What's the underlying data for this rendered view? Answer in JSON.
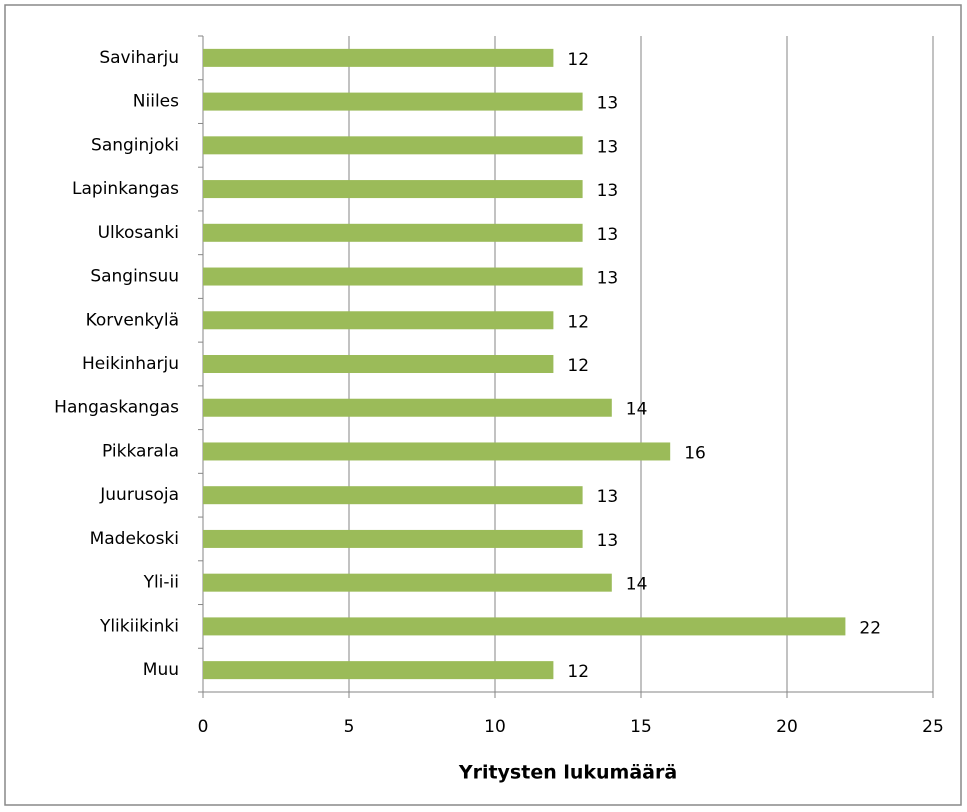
{
  "chart_data": {
    "type": "bar",
    "orientation": "horizontal",
    "x_label": "Yritysten lukumäärä",
    "categories": [
      "Saviharju",
      "Niiles",
      "Sanginjoki",
      "Lapinkangas",
      "Ulkosanki",
      "Sanginsuu",
      "Korvenkylä",
      "Heikinharju",
      "Hangaskangas",
      "Pikkarala",
      "Juurusoja",
      "Madekoski",
      "Yli-ii",
      "Ylikiikinki",
      "Muu"
    ],
    "values": [
      12,
      13,
      13,
      13,
      13,
      13,
      12,
      12,
      14,
      16,
      13,
      13,
      14,
      22,
      12
    ],
    "color": "#9bbb59",
    "xlim": [
      0,
      25
    ],
    "xticks": [
      0,
      5,
      10,
      15,
      20,
      25
    ],
    "grid": true
  }
}
